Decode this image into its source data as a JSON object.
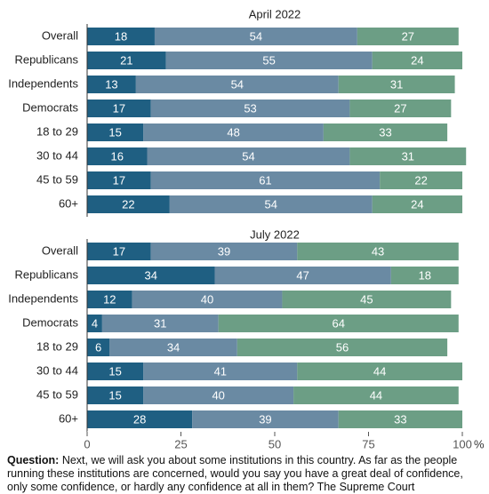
{
  "chart_data": [
    {
      "type": "stacked-bar-horizontal",
      "title": "April 2022",
      "categories": [
        "Overall",
        "Republicans",
        "Independents",
        "Democrats",
        "18 to 29",
        "30 to 44",
        "45 to 59",
        "60+"
      ],
      "series": [
        {
          "color": "#1f5f82",
          "values": [
            18,
            21,
            13,
            17,
            15,
            16,
            17,
            22
          ]
        },
        {
          "color": "#6a8aa3",
          "values": [
            54,
            55,
            54,
            53,
            48,
            54,
            61,
            54
          ]
        },
        {
          "color": "#6c9e85",
          "values": [
            27,
            24,
            31,
            27,
            33,
            31,
            22,
            24
          ]
        }
      ],
      "xlim": [
        0,
        100
      ]
    },
    {
      "type": "stacked-bar-horizontal",
      "title": "July 2022",
      "categories": [
        "Overall",
        "Republicans",
        "Independents",
        "Democrats",
        "18 to 29",
        "30 to 44",
        "45 to 59",
        "60+"
      ],
      "series": [
        {
          "color": "#1f5f82",
          "values": [
            17,
            34,
            12,
            4,
            6,
            15,
            15,
            28
          ]
        },
        {
          "color": "#6a8aa3",
          "values": [
            39,
            47,
            40,
            31,
            34,
            41,
            40,
            39
          ]
        },
        {
          "color": "#6c9e85",
          "values": [
            43,
            18,
            45,
            64,
            56,
            44,
            44,
            33
          ]
        }
      ],
      "xlim": [
        0,
        100
      ],
      "xticks": [
        0,
        25,
        50,
        75,
        100
      ],
      "xlabel": "%"
    }
  ],
  "footnote": {
    "label": "Question:",
    "text": "Next, we will ask you about some institutions in this country. As far as the people running these institutions are concerned, would you say you have a great deal of confidence, only some confidence, or hardly any confidence at all in them? The Supreme Court"
  }
}
